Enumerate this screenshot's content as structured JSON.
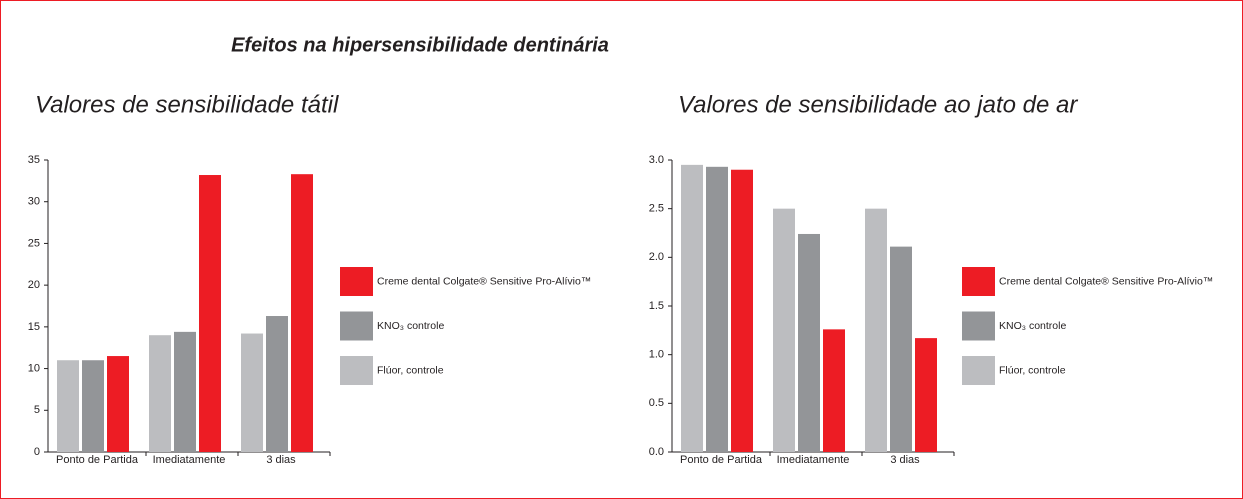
{
  "title": "Efeitos na hipersensibilidade dentinária",
  "chart_data": [
    {
      "type": "bar",
      "title": "Valores de sensibilidade tátil",
      "categories": [
        "Ponto de Partida",
        "Imediatamente",
        "3 dias"
      ],
      "series": [
        {
          "name": "Flúor, controle",
          "color": "#bcbdc0",
          "values": [
            11,
            14,
            14.2
          ]
        },
        {
          "name": "KNO₃ controle",
          "color": "#939598",
          "values": [
            11,
            14.4,
            16.3
          ]
        },
        {
          "name": "Creme dental Colgate® Sensitive Pro-Alívio™",
          "color": "#ed1c24",
          "values": [
            11.5,
            33.2,
            33.3
          ]
        }
      ],
      "ylim": [
        0,
        35
      ],
      "yticks": [
        0,
        5,
        10,
        15,
        20,
        25,
        30,
        35
      ]
    },
    {
      "type": "bar",
      "title": "Valores de sensibilidade ao jato de ar",
      "categories": [
        "Ponto de Partida",
        "Imediatamente",
        "3 dias"
      ],
      "series": [
        {
          "name": "Flúor, controle",
          "color": "#bcbdc0",
          "values": [
            2.95,
            2.5,
            2.5
          ]
        },
        {
          "name": "KNO₃ controle",
          "color": "#939598",
          "values": [
            2.93,
            2.24,
            2.11
          ]
        },
        {
          "name": "Creme dental Colgate® Sensitive Pro-Alívio™",
          "color": "#ed1c24",
          "values": [
            2.9,
            1.26,
            1.17
          ]
        }
      ],
      "ylim": [
        0,
        3
      ],
      "yticks": [
        {
          "value": 0,
          "label": "0.0"
        },
        0.5,
        {
          "value": 1,
          "label": "1.0"
        },
        1.5,
        {
          "value": 2,
          "label": "2.0"
        },
        2.5,
        {
          "value": 3,
          "label": "3.0"
        }
      ]
    }
  ]
}
